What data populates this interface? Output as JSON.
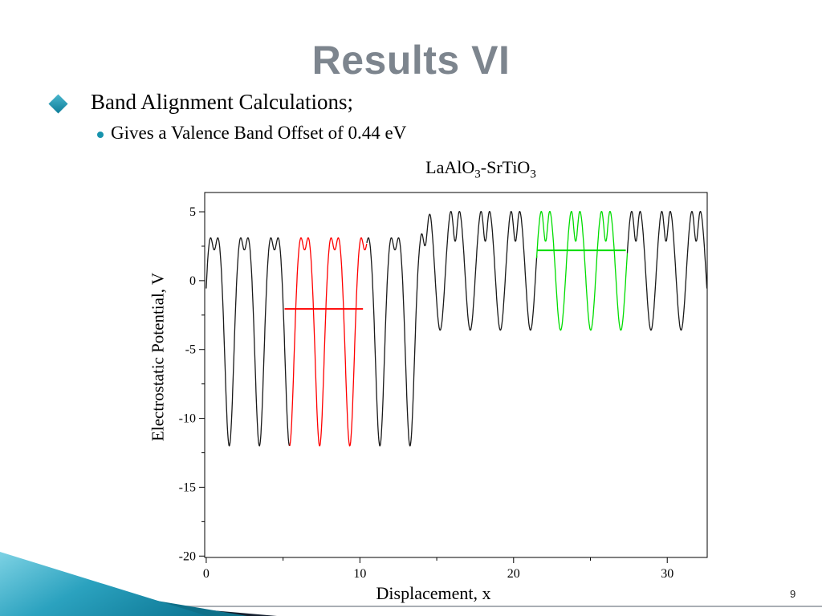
{
  "slide": {
    "title": "Results VI",
    "bullets": [
      {
        "level": 1,
        "text": "Band Alignment Calculations;"
      },
      {
        "level": 2,
        "text": "Gives a Valence Band Offset of 0.44 eV"
      }
    ],
    "page_number": "9"
  },
  "colors": {
    "title_gray": "#7d858e",
    "accent_teal": "#1793ad",
    "curve_black": "#1a1a1a",
    "curve_red": "#ff0000",
    "curve_green": "#00dd00"
  },
  "chart_data": {
    "type": "line",
    "title": "LaAlO3-SrTiO3",
    "title_parts": [
      {
        "t": "LaAlO"
      },
      {
        "t": "3",
        "sub": true
      },
      {
        "t": "-SrTiO"
      },
      {
        "t": "3",
        "sub": true
      }
    ],
    "xlabel": "Displacement, x",
    "ylabel": "Electrostatic Potential, V",
    "xlim": [
      -0.1,
      32.6
    ],
    "ylim": [
      -20.1,
      6.4
    ],
    "grid": false,
    "legend": "none",
    "xticks": [
      {
        "v": 0,
        "label": "0"
      },
      {
        "v": 10,
        "label": "10"
      },
      {
        "v": 20,
        "label": "20"
      },
      {
        "v": 30,
        "label": "30"
      }
    ],
    "xminor": [
      5,
      15,
      25
    ],
    "yticks": [
      {
        "v": 5,
        "label": "5"
      },
      {
        "v": 0,
        "label": "0"
      },
      {
        "v": -5,
        "label": "-5"
      },
      {
        "v": -10,
        "label": "-10"
      },
      {
        "v": -15,
        "label": "-15"
      },
      {
        "v": -20,
        "label": "-20"
      }
    ],
    "yminor": [
      2.5,
      -2.5,
      -7.5,
      -12.5,
      -17.5
    ],
    "curve": {
      "description": "Planar oscillating electrostatic potential: left region has double-hump peaks near +3 V with deep wells to -12 V; right region has taller double-hump peaks near +5 V with shallow wells to about -3.6 V.",
      "sample_step": 0.02,
      "regions": [
        {
          "name": "left-region",
          "x_start": 0,
          "x_end": 14.24,
          "period": 1.96,
          "well_x0": 1.5,
          "peak": 4.2,
          "well": -12.0,
          "dip": 1.9,
          "well_sigma": 0.15,
          "dip_sigma": 0.07,
          "visible_peak": 3.1,
          "visible_well": -12.0
        },
        {
          "name": "right-region",
          "x_start": 14.24,
          "x_end": 32.58,
          "period": 1.96,
          "well_x0": 15.22,
          "peak": 6.6,
          "well": -3.6,
          "dip": 3.6,
          "well_sigma": 0.17,
          "dip_sigma": 0.07,
          "visible_peak": 5.0,
          "visible_well": -3.6
        }
      ],
      "blend": {
        "start": 13.9,
        "end": 14.6
      },
      "color_segments": [
        {
          "x_start": 0.0,
          "x_end": 5.42,
          "color": "#1a1a1a"
        },
        {
          "x_start": 5.42,
          "x_end": 10.45,
          "color": "#ff0000"
        },
        {
          "x_start": 10.45,
          "x_end": 21.5,
          "color": "#1a1a1a"
        },
        {
          "x_start": 21.5,
          "x_end": 27.4,
          "color": "#00dd00"
        },
        {
          "x_start": 27.4,
          "x_end": 32.58,
          "color": "#1a1a1a"
        }
      ]
    },
    "average_lines": [
      {
        "y": -2.05,
        "x_start": 5.1,
        "x_end": 10.2,
        "color": "#ff0000"
      },
      {
        "y": 2.2,
        "x_start": 21.5,
        "x_end": 27.3,
        "color": "#00dd00"
      }
    ]
  }
}
